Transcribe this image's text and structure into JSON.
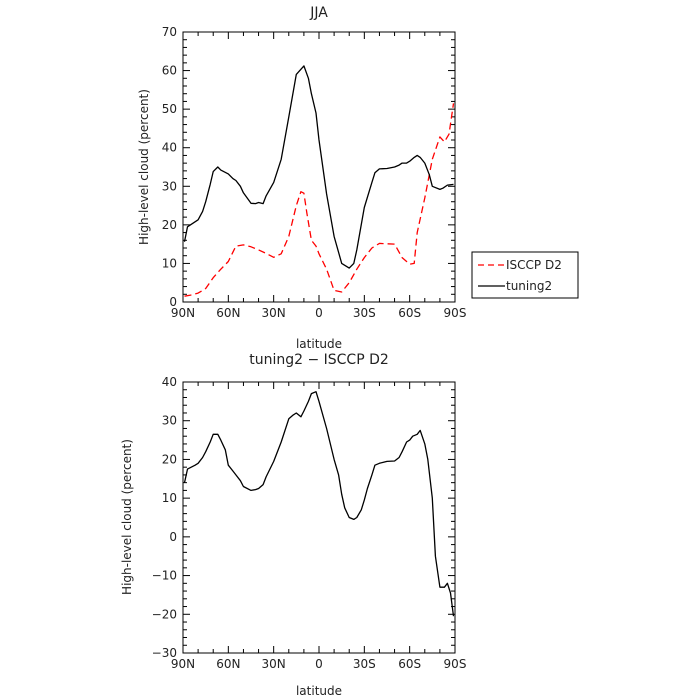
{
  "chart_data": [
    {
      "type": "line",
      "title": "JJA",
      "xlabel": "latitude",
      "ylabel": "High-level cloud (percent)",
      "xlim": [
        90,
        -90
      ],
      "ylim": [
        0,
        70
      ],
      "x_ticks": [
        90,
        60,
        30,
        0,
        -30,
        -60,
        -90
      ],
      "x_tick_labels": [
        "90N",
        "60N",
        "30N",
        "0",
        "30S",
        "60S",
        "90S"
      ],
      "y_ticks": [
        0,
        10,
        20,
        30,
        40,
        50,
        60,
        70
      ],
      "y_tick_labels": [
        "0",
        "10",
        "20",
        "30",
        "40",
        "50",
        "60",
        "70"
      ],
      "grid": false,
      "legend_position": "outside-right",
      "series": [
        {
          "name": "ISCCP D2",
          "color": "#ff0000",
          "dash": "dashed",
          "x": [
            89,
            85,
            80,
            75,
            70,
            65,
            60,
            55,
            50,
            45,
            40,
            35,
            30,
            25,
            20,
            15,
            12,
            10,
            8,
            5,
            2,
            0,
            -5,
            -10,
            -15,
            -20,
            -25,
            -30,
            -35,
            -40,
            -45,
            -50,
            -55,
            -58,
            -60,
            -63,
            -65,
            -70,
            -75,
            -80,
            -83,
            -86,
            -89
          ],
          "y": [
            1.5,
            1.8,
            2.3,
            3.5,
            6.3,
            8.5,
            10.5,
            14.5,
            14.8,
            14.3,
            13.5,
            12.6,
            11.6,
            12.5,
            17,
            25,
            28.6,
            28.2,
            23,
            16,
            14.5,
            12.5,
            8.5,
            3,
            2.6,
            5,
            8.5,
            11.5,
            14,
            15.2,
            15.1,
            15,
            11.5,
            10.5,
            9.8,
            10,
            18,
            27,
            37,
            42.8,
            41.5,
            43.5,
            51.5
          ]
        },
        {
          "name": "tuning2",
          "color": "#000000",
          "dash": "solid",
          "x": [
            89,
            87,
            80,
            77,
            75,
            72,
            70,
            67,
            65,
            60,
            57,
            55,
            52,
            50,
            45,
            42,
            40,
            37,
            35,
            30,
            25,
            20,
            15,
            10,
            7,
            5,
            2,
            0,
            -5,
            -10,
            -15,
            -20,
            -23,
            -25,
            -30,
            -35,
            -37,
            -40,
            -45,
            -50,
            -53,
            -55,
            -58,
            -60,
            -63,
            -65,
            -67,
            -70,
            -73,
            -75,
            -80,
            -82,
            -85,
            -89
          ],
          "y": [
            15.6,
            19.5,
            21.3,
            23.5,
            26,
            30.5,
            33.8,
            35,
            34.2,
            33.2,
            32,
            31.5,
            30,
            28.3,
            25.6,
            25.5,
            25.8,
            25.5,
            27.5,
            31,
            37,
            48,
            59,
            61.2,
            58,
            54,
            49,
            42,
            28,
            17,
            10,
            8.8,
            10,
            13.5,
            24.5,
            31,
            33.5,
            34.5,
            34.6,
            35,
            35.5,
            36,
            36,
            36.5,
            37.5,
            38,
            37.5,
            36,
            33,
            30,
            29.2,
            29.5,
            30.3,
            30.5
          ]
        }
      ]
    },
    {
      "type": "line",
      "title": "tuning2 − ISCCP D2",
      "xlabel": "latitude",
      "ylabel": "High-level cloud (percent)",
      "xlim": [
        90,
        -90
      ],
      "ylim": [
        -30,
        40
      ],
      "x_ticks": [
        90,
        60,
        30,
        0,
        -30,
        -60,
        -90
      ],
      "x_tick_labels": [
        "90N",
        "60N",
        "30N",
        "0",
        "30S",
        "60S",
        "90S"
      ],
      "y_ticks": [
        -30,
        -20,
        -10,
        0,
        10,
        20,
        30,
        40
      ],
      "y_tick_labels": [
        "−30",
        "−20",
        "−10",
        "0",
        "10",
        "20",
        "30",
        "40"
      ],
      "grid": false,
      "series": [
        {
          "color": "#000000",
          "dash": "solid",
          "x": [
            89,
            87,
            82,
            80,
            77,
            75,
            72,
            70,
            67,
            65,
            62,
            60,
            57,
            55,
            52,
            50,
            45,
            42,
            40,
            37,
            35,
            30,
            25,
            20,
            17,
            15,
            12,
            10,
            7,
            5,
            2,
            0,
            -5,
            -10,
            -13,
            -15,
            -17,
            -20,
            -23,
            -25,
            -28,
            -30,
            -32,
            -35,
            -37,
            -40,
            -43,
            -45,
            -50,
            -53,
            -55,
            -58,
            -60,
            -62,
            -65,
            -67,
            -70,
            -72,
            -75,
            -77,
            -80,
            -83,
            -85,
            -87,
            -89
          ],
          "y": [
            14,
            17.5,
            18.5,
            19,
            20.5,
            22,
            24.5,
            26.5,
            26.5,
            25,
            22.5,
            18.5,
            17,
            16,
            14.5,
            13,
            12,
            12.2,
            12.5,
            13.5,
            15.5,
            19.5,
            24.5,
            30.5,
            31.5,
            32,
            31,
            32.5,
            35,
            37,
            37.5,
            35,
            28,
            20,
            16,
            11,
            7.5,
            5,
            4.5,
            5,
            7,
            9.5,
            12.5,
            16,
            18.5,
            19,
            19.3,
            19.5,
            19.6,
            20.5,
            22,
            24.5,
            25,
            26,
            26.5,
            27.5,
            24,
            20,
            10,
            -5,
            -13,
            -13,
            -12,
            -14.5,
            -20.5
          ]
        }
      ]
    }
  ]
}
